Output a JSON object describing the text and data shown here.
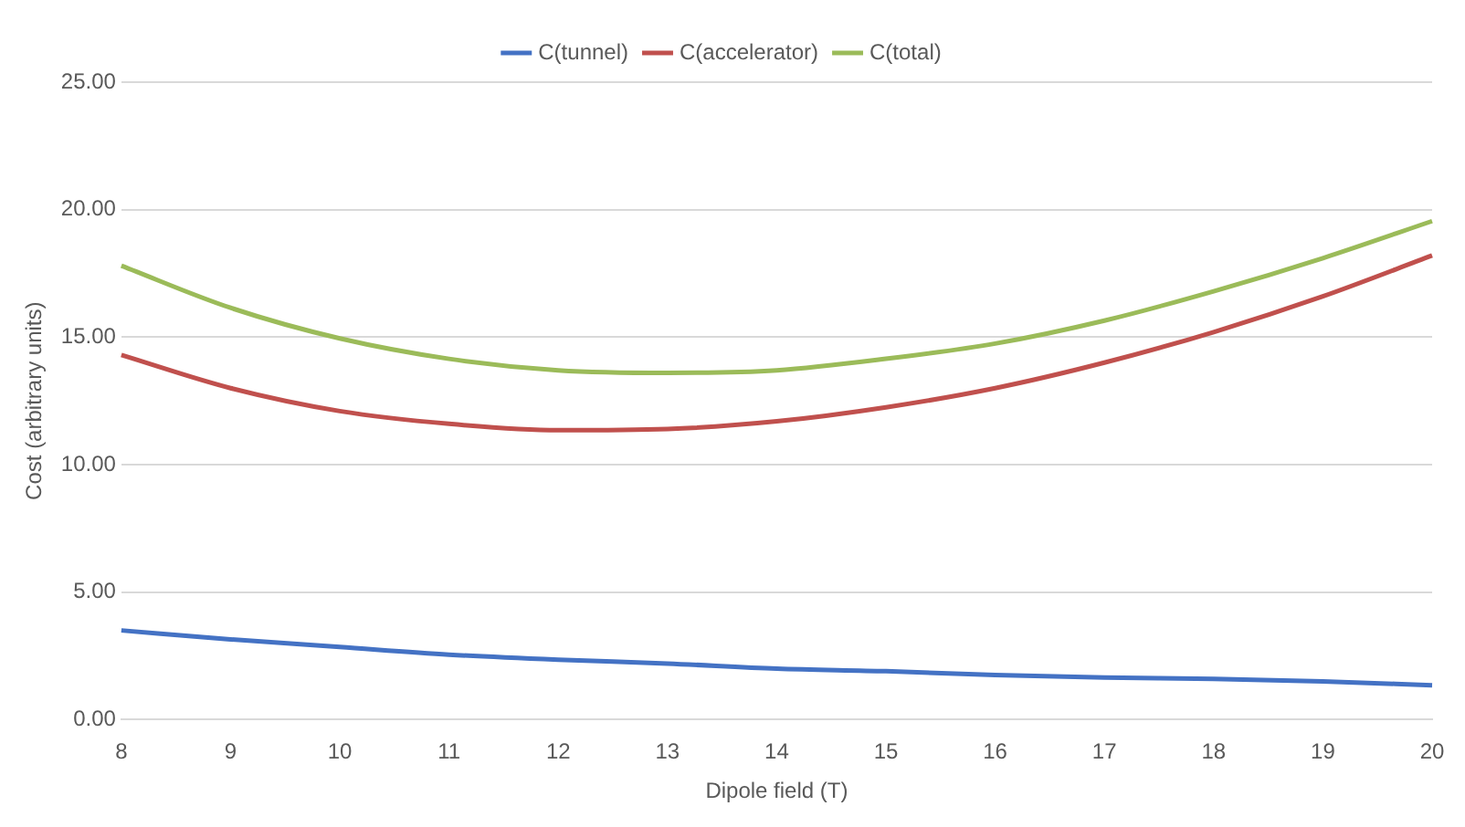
{
  "chart_data": {
    "type": "line",
    "xlabel": "Dipole field (T)",
    "ylabel": "Cost (arbitrary units)",
    "categories": [
      "8",
      "9",
      "10",
      "11",
      "12",
      "13",
      "14",
      "15",
      "16",
      "17",
      "18",
      "19",
      "20"
    ],
    "series": [
      {
        "name": "C(tunnel)",
        "color": "#4472c4",
        "values": [
          3.5,
          3.15,
          2.85,
          2.55,
          2.35,
          2.2,
          2.0,
          1.9,
          1.75,
          1.65,
          1.6,
          1.5,
          1.35
        ]
      },
      {
        "name": "C(accelerator)",
        "color": "#c0504d",
        "values": [
          14.3,
          13.0,
          12.1,
          11.6,
          11.35,
          11.4,
          11.7,
          12.25,
          13.0,
          14.0,
          15.2,
          16.6,
          18.2
        ]
      },
      {
        "name": "C(total)",
        "color": "#9bbb59",
        "values": [
          17.8,
          16.15,
          14.95,
          14.15,
          13.7,
          13.6,
          13.7,
          14.15,
          14.75,
          15.65,
          16.8,
          18.1,
          19.55
        ]
      }
    ],
    "ylim": [
      0,
      25
    ],
    "yticks": [
      {
        "value": 0,
        "label": "0.00"
      },
      {
        "value": 5,
        "label": "5.00"
      },
      {
        "value": 10,
        "label": "10.00"
      },
      {
        "value": 15,
        "label": "15.00"
      },
      {
        "value": 20,
        "label": "20.00"
      },
      {
        "value": 25,
        "label": "25.00"
      }
    ],
    "grid": "y",
    "legend": "top",
    "marker": "none",
    "line_style": "solid"
  }
}
